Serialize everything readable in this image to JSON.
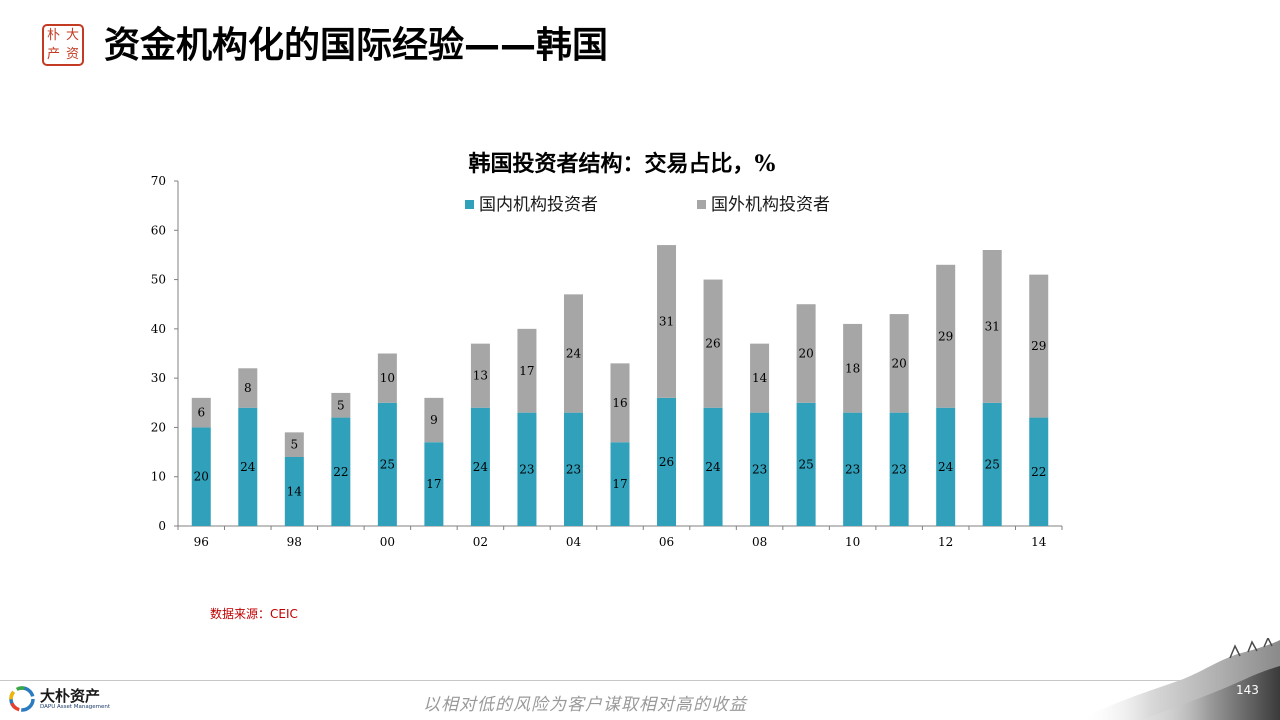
{
  "header": {
    "seal_chars": [
      "大",
      "朴",
      "资",
      "产"
    ],
    "title": "资金机构化的国际经验——韩国"
  },
  "chart_data": {
    "type": "bar",
    "stacked": true,
    "title": "韩国投资者结构：交易占比，%",
    "xlabel": "",
    "ylabel": "",
    "ylim": [
      0,
      70
    ],
    "yticks": [
      0,
      10,
      20,
      30,
      40,
      50,
      60,
      70
    ],
    "categories": [
      "96",
      "97",
      "98",
      "99",
      "00",
      "01",
      "02",
      "03",
      "04",
      "05",
      "06",
      "07",
      "08",
      "09",
      "10",
      "11",
      "12",
      "13",
      "14"
    ],
    "xtick_labels": [
      "96",
      "",
      "98",
      "",
      "00",
      "",
      "02",
      "",
      "04",
      "",
      "06",
      "",
      "08",
      "",
      "10",
      "",
      "12",
      "",
      "14"
    ],
    "series": [
      {
        "name": "国内机构投资者",
        "color": "#31a1bb",
        "values": [
          20,
          24,
          14,
          22,
          25,
          17,
          24,
          23,
          23,
          17,
          26,
          24,
          23,
          25,
          23,
          23,
          24,
          25,
          22
        ]
      },
      {
        "name": "国外机构投资者",
        "color": "#a6a6a6",
        "values": [
          6,
          8,
          5,
          5,
          10,
          9,
          13,
          17,
          24,
          16,
          31,
          26,
          14,
          20,
          18,
          20,
          29,
          31,
          29
        ]
      }
    ],
    "legend_position": "top",
    "grid": false,
    "data_labels": true
  },
  "source": "数据来源：CEIC",
  "footer": {
    "logo_cn": "大朴资产",
    "logo_en": "DAPU Asset Management",
    "slogan": "以相对低的风险为客户谋取相对高的收益",
    "page_number": "143"
  }
}
